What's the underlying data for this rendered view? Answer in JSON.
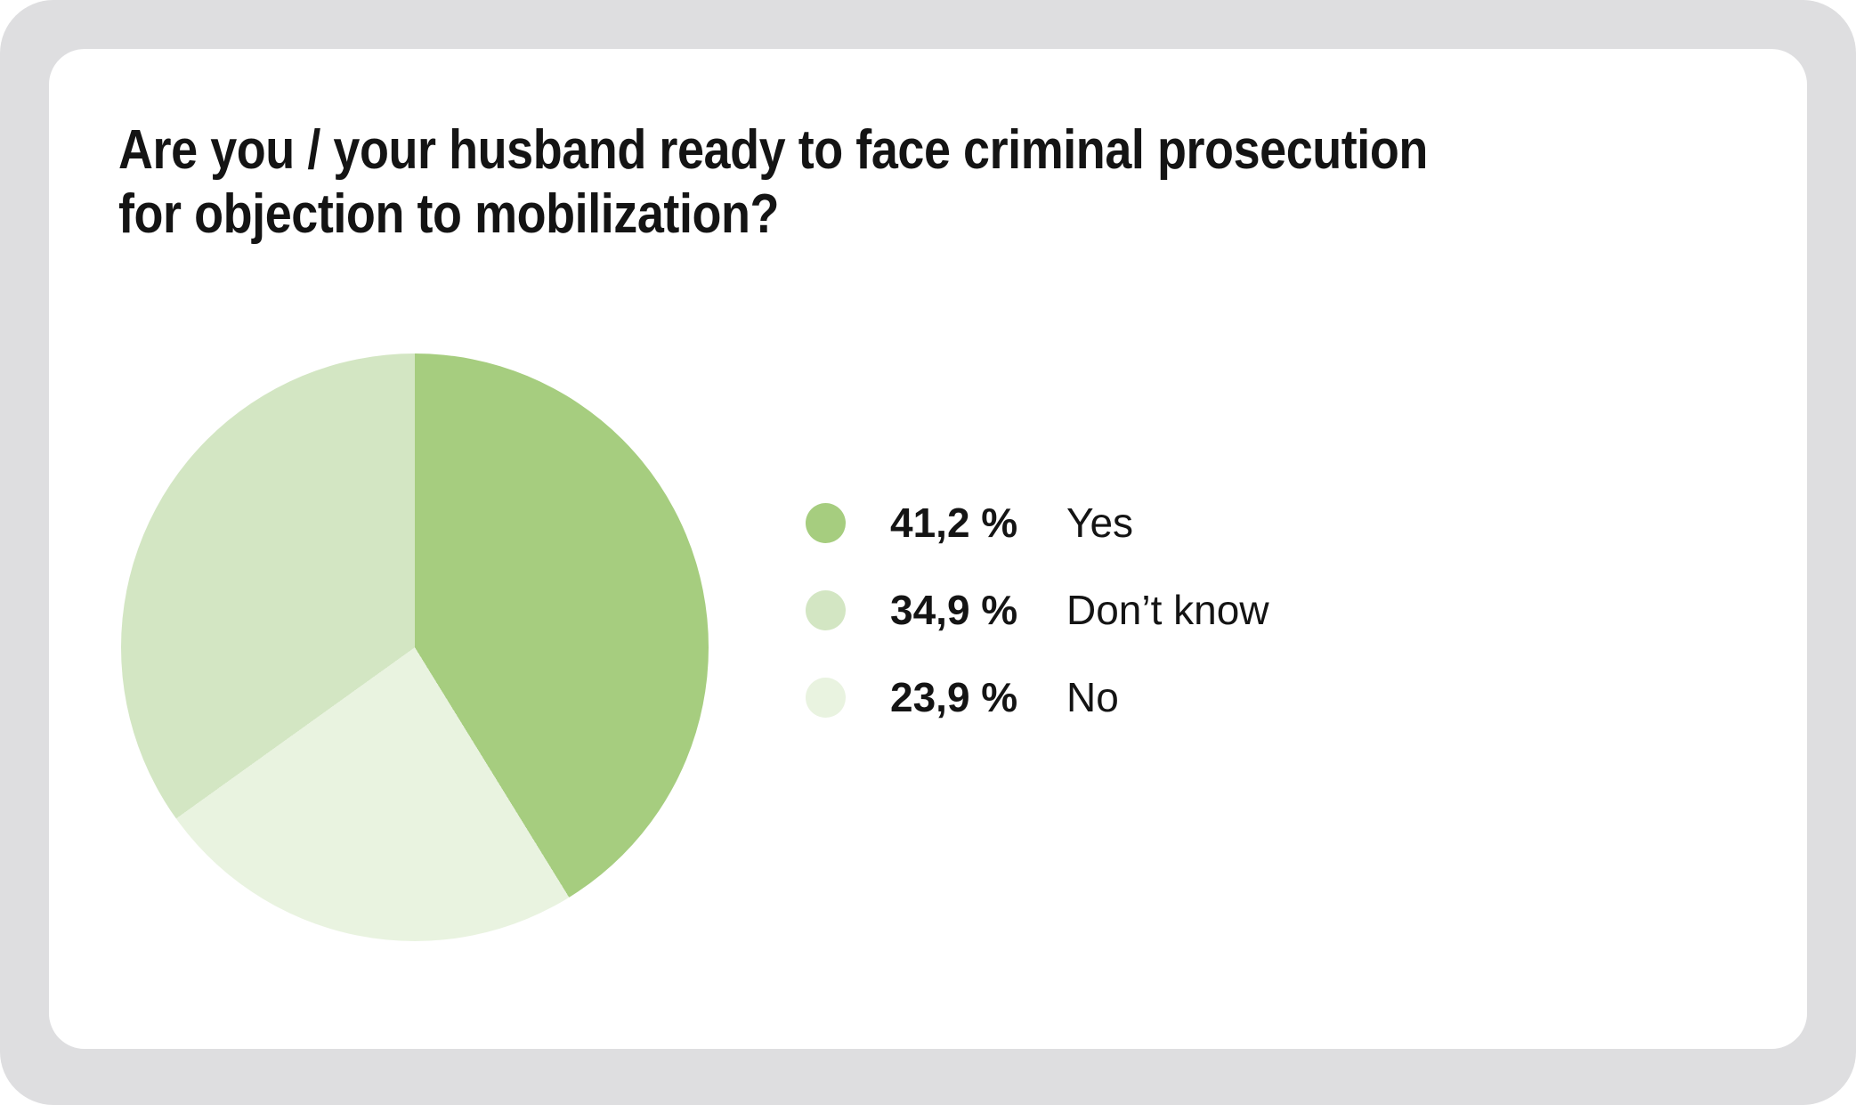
{
  "card": {
    "title_lines": [
      "Are you / your husband ready to face criminal prosecution",
      "for objection to mobilization?"
    ]
  },
  "chart_data": {
    "type": "pie",
    "title": "Are you / your husband ready to face criminal prosecution for objection to mobilization?",
    "unit": "%",
    "decimal_separator": ",",
    "segments": [
      {
        "label": "Yes",
        "value_pct": 41.2,
        "display": "41,2 %",
        "color": "#a6cd7f"
      },
      {
        "label": "Don’t know",
        "value_pct": 34.9,
        "display": "34,9 %",
        "color": "#d3e6c3"
      },
      {
        "label": "No",
        "value_pct": 23.9,
        "display": "23,9 %",
        "color": "#e9f3e0"
      }
    ],
    "pie_start": "top",
    "pie_direction": "clockwise",
    "pie_order_indices": [
      0,
      2,
      1
    ],
    "legend_position": "right-of-chart",
    "legend_order": [
      "Yes",
      "Don’t know",
      "No"
    ]
  },
  "theme": {
    "frame_bg": "#dedee0",
    "card_bg": "#ffffff",
    "text_color": "#141414"
  }
}
